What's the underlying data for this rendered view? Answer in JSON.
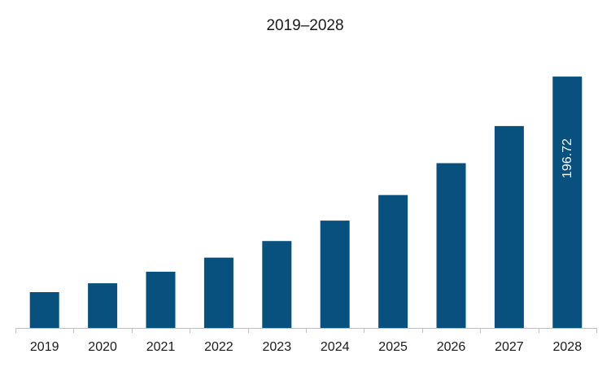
{
  "chart_data": {
    "type": "bar",
    "title": "2019–2028",
    "xlabel": "",
    "ylabel": "",
    "categories": [
      "2019",
      "2020",
      "2021",
      "2022",
      "2023",
      "2024",
      "2025",
      "2026",
      "2027",
      "2028"
    ],
    "values": [
      28,
      35,
      44,
      55,
      68,
      84,
      104,
      129,
      158,
      196.72
    ],
    "data_labels": {
      "2028": "196.72"
    },
    "ylim": [
      0,
      200
    ],
    "grid": false,
    "legend": "none",
    "bar_color": "#08507e",
    "axis_color": "#bfbfbf"
  }
}
